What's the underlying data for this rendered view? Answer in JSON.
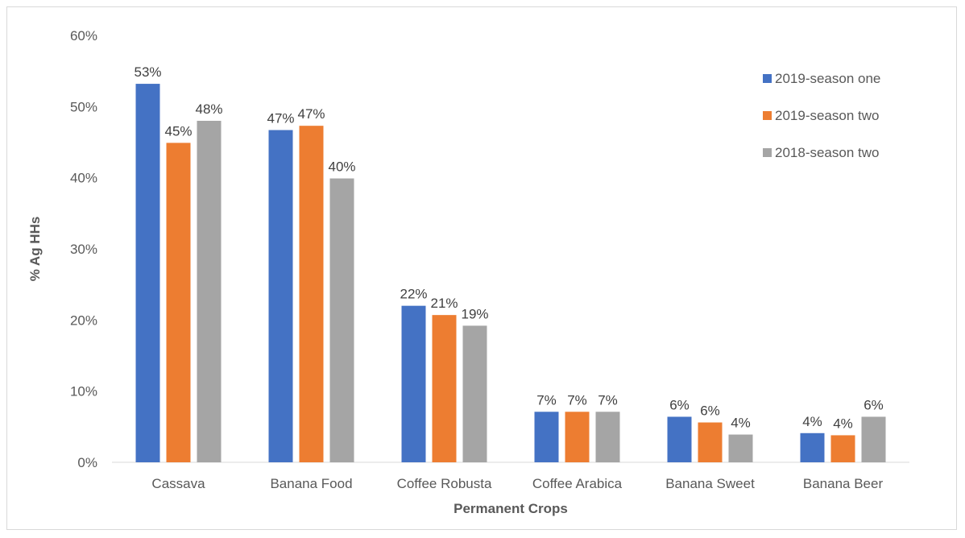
{
  "chart_data": {
    "type": "bar",
    "categories": [
      "Cassava",
      "Banana Food",
      "Coffee Robusta",
      "Coffee Arabica",
      "Banana Sweet",
      "Banana Beer"
    ],
    "series": [
      {
        "name": "2019-season one",
        "color": "#4472c4",
        "values": [
          53.2,
          46.7,
          22.0,
          7.1,
          6.4,
          4.1
        ],
        "labels": [
          "53%",
          "47%",
          "22%",
          "7%",
          "6%",
          "4%"
        ]
      },
      {
        "name": "2019-season two",
        "color": "#ed7d31",
        "values": [
          44.9,
          47.3,
          20.7,
          7.1,
          5.6,
          3.8
        ],
        "labels": [
          "45%",
          "47%",
          "21%",
          "7%",
          "6%",
          "4%"
        ]
      },
      {
        "name": "2018-season two",
        "color": "#a5a5a5",
        "values": [
          48.0,
          39.9,
          19.2,
          7.1,
          3.9,
          6.4
        ],
        "labels": [
          "48%",
          "40%",
          "19%",
          "7%",
          "4%",
          "6%"
        ]
      }
    ],
    "title": "",
    "xlabel": "Permanent Crops",
    "ylabel": "% Ag HHs",
    "ylim": [
      0,
      60
    ],
    "yticks": [
      "0%",
      "10%",
      "20%",
      "30%",
      "40%",
      "50%",
      "60%"
    ],
    "legend_position": "top-right",
    "grid": false
  }
}
